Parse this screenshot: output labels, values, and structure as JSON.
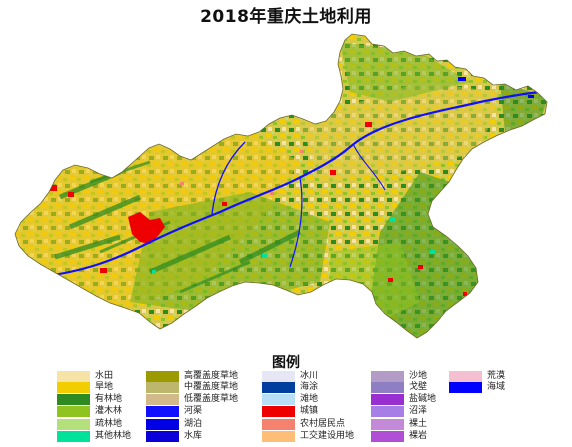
{
  "title": "2018年重庆土地利用",
  "legend_title": "图例",
  "legend": [
    {
      "label": "水田",
      "color": "#f5e4a6"
    },
    {
      "label": "旱地",
      "color": "#f2cd00"
    },
    {
      "label": "有林地",
      "color": "#2e8b22"
    },
    {
      "label": "灌木林",
      "color": "#8fc31f"
    },
    {
      "label": "疏林地",
      "color": "#b3e07a"
    },
    {
      "label": "其他林地",
      "color": "#00e29a"
    },
    {
      "label": "高覆盖度草地",
      "color": "#9b9a00"
    },
    {
      "label": "中覆盖度草地",
      "color": "#bdb76b"
    },
    {
      "label": "低覆盖度草地",
      "color": "#d2b98c"
    },
    {
      "label": "河渠",
      "color": "#1010ff"
    },
    {
      "label": "湖泊",
      "color": "#0000e6"
    },
    {
      "label": "水库",
      "color": "#0a00d8"
    },
    {
      "label": "冰川",
      "color": "#e6e6f5"
    },
    {
      "label": "海涂",
      "color": "#003f9e"
    },
    {
      "label": "滩地",
      "color": "#b7dff5"
    },
    {
      "label": "城镇",
      "color": "#ee0000"
    },
    {
      "label": "农村居民点",
      "color": "#f4826e"
    },
    {
      "label": "工交建设用地",
      "color": "#ffbe78"
    },
    {
      "label": "沙地",
      "color": "#b39bc8"
    },
    {
      "label": "戈壁",
      "color": "#8d7fc1"
    },
    {
      "label": "盐碱地",
      "color": "#9a2fd1"
    },
    {
      "label": "沼泽",
      "color": "#a77ee6"
    },
    {
      "label": "裸土",
      "color": "#c48ad8"
    },
    {
      "label": "裸岩",
      "color": "#b04ed6"
    },
    {
      "label": "荒漠",
      "color": "#f5bfd2"
    },
    {
      "label": "海域",
      "color": "#0000ff"
    }
  ]
}
